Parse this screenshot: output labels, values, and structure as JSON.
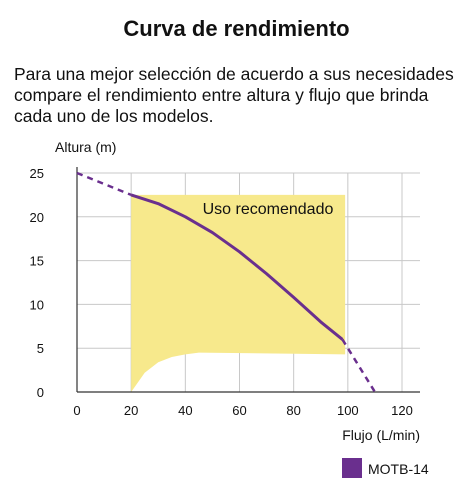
{
  "title": "Curva de rendimiento",
  "description": [
    "Para una mejor selección de acuerdo a sus necesidades",
    "compare el rendimiento entre altura y flujo que brinda",
    "cada uno de los modelos."
  ],
  "chart_data": {
    "type": "line",
    "xlabel": "Flujo (L/min)",
    "ylabel": "Altura (m)",
    "xlim": [
      0,
      120
    ],
    "ylim": [
      0,
      25
    ],
    "x_ticks": [
      "0",
      "20",
      "40",
      "60",
      "80",
      "100",
      "120"
    ],
    "y_ticks": [
      "0",
      "5",
      "10",
      "15",
      "20",
      "25"
    ],
    "grid": true,
    "series": [
      {
        "name": "MOTB-14",
        "color": "#6a2f8e",
        "solid": [
          [
            20,
            22.5
          ],
          [
            30,
            21.5
          ],
          [
            40,
            20.0
          ],
          [
            50,
            18.2
          ],
          [
            60,
            16.0
          ],
          [
            70,
            13.5
          ],
          [
            80,
            10.8
          ],
          [
            90,
            8.0
          ],
          [
            98,
            6.0
          ]
        ],
        "dashed_start": [
          [
            0,
            25
          ],
          [
            20,
            22.5
          ]
        ],
        "dashed_end": [
          [
            98,
            6.0
          ],
          [
            110,
            0
          ]
        ]
      }
    ],
    "region": {
      "label": "Uso recomendado",
      "color": "#f7e98c",
      "top_y": 22.5,
      "x_range": [
        20,
        99
      ],
      "bottom_boundary": [
        [
          20,
          0
        ],
        [
          25,
          2.2
        ],
        [
          30,
          3.4
        ],
        [
          35,
          4.0
        ],
        [
          40,
          4.3
        ],
        [
          45,
          4.5
        ],
        [
          99,
          4.3
        ]
      ]
    },
    "legend": {
      "position": "bottom-right",
      "label": "MOTB-14",
      "color": "#6a2f8e"
    }
  }
}
